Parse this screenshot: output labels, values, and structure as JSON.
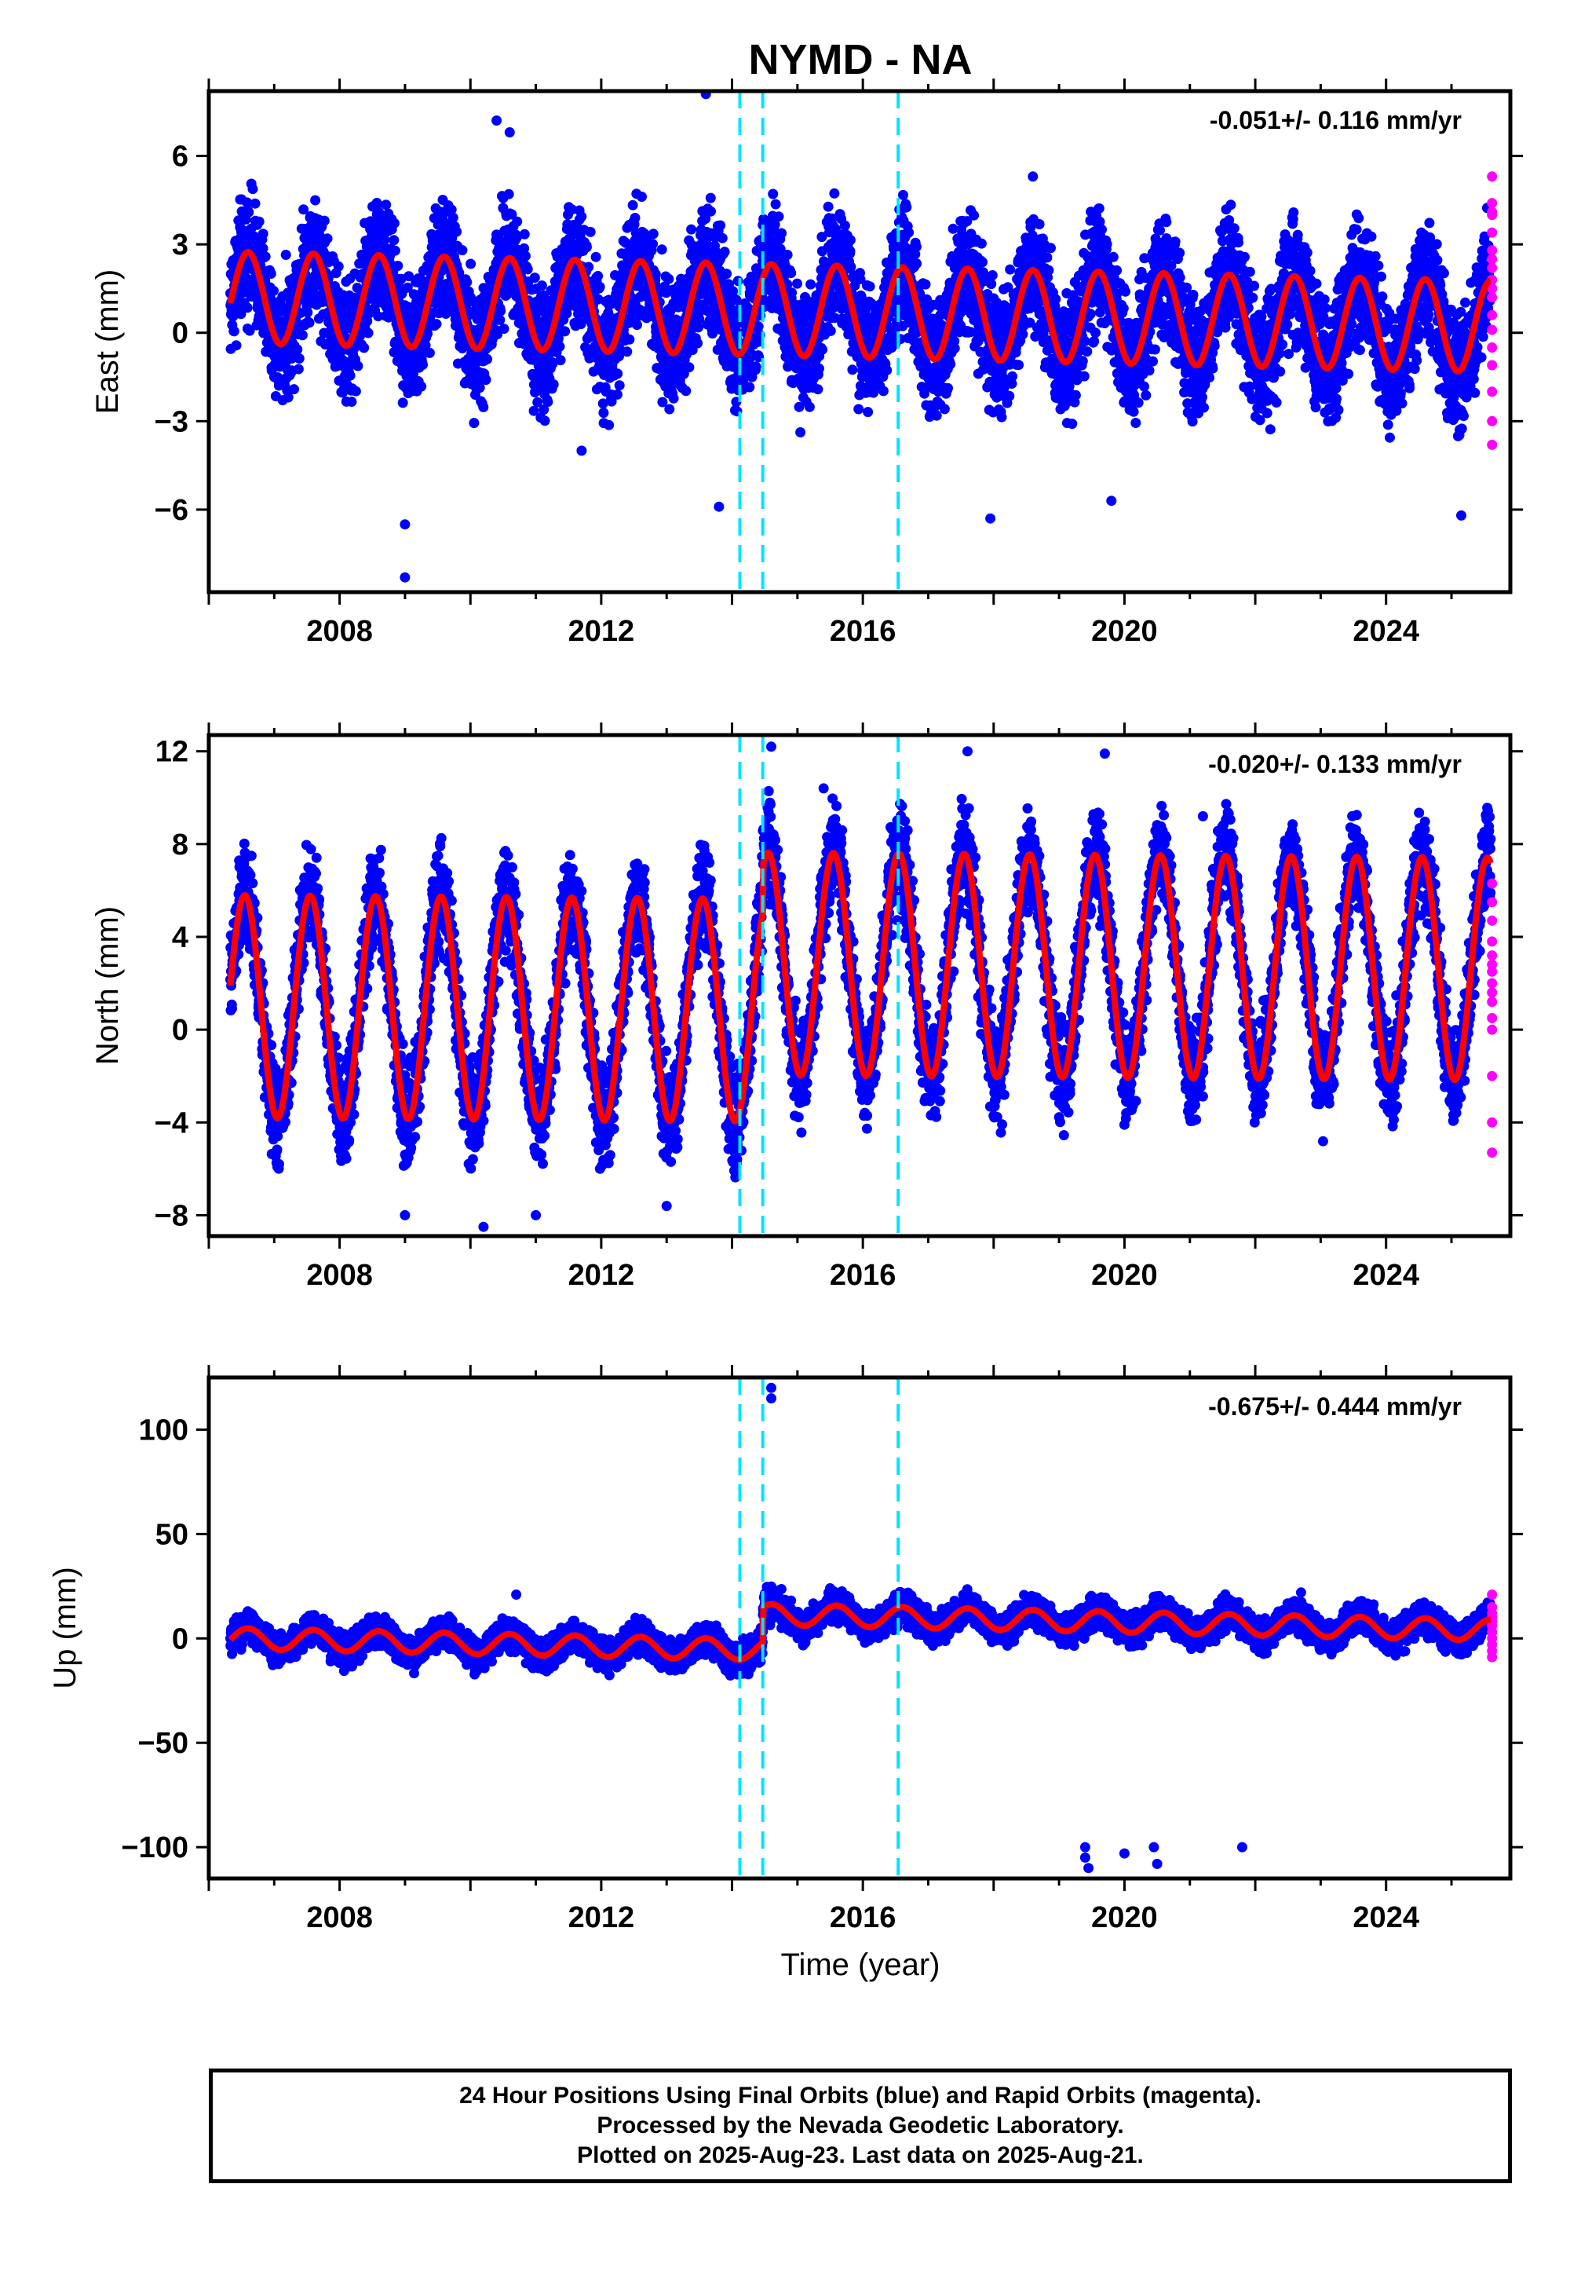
{
  "title": "NYMD - NA",
  "xlabel": "Time (year)",
  "chart_data": [
    {
      "type": "scatter",
      "panel": "east",
      "ylabel": "East (mm)",
      "rate": "-0.051+/- 0.116 mm/yr",
      "xlim": [
        2006.0,
        2025.9
      ],
      "ylim": [
        -8.8,
        8.2
      ],
      "yticks": [
        -6,
        -3,
        0,
        3,
        6
      ],
      "xticks": [
        2008,
        2012,
        2016,
        2020,
        2024
      ],
      "offsets": [
        2014.12,
        2014.47,
        2016.54
      ],
      "trend": {
        "t0": 2006.33,
        "c0": 1.2,
        "slope": -0.051,
        "amp": 1.55,
        "phase_peak": 0.6
      },
      "noise": 1.15,
      "outliers": [
        [
          2009.0,
          -8.3
        ],
        [
          2009.0,
          -6.5
        ],
        [
          2013.8,
          -5.9
        ],
        [
          2010.4,
          7.2
        ],
        [
          2010.6,
          6.8
        ],
        [
          2013.6,
          8.1
        ],
        [
          2025.15,
          -6.2
        ],
        [
          2017.95,
          -6.3
        ],
        [
          2019.8,
          -5.7
        ],
        [
          2011.7,
          -4.0
        ],
        [
          2018.6,
          5.3
        ]
      ],
      "rapid": {
        "t": 2025.62,
        "values": [
          5.3,
          4.4,
          4.1,
          3.4,
          2.8,
          2.2,
          1.8,
          1.2,
          0.6,
          0.1,
          -0.5,
          -1.1,
          -2.0,
          -3.0,
          -3.8,
          2.5,
          1.5,
          4.0
        ]
      },
      "series": [
        {
          "name": "Final Orbits",
          "color": "#0000ff"
        },
        {
          "name": "Rapid Orbits",
          "color": "#ff00ff"
        },
        {
          "name": "Model",
          "color": "#ff0000"
        }
      ]
    },
    {
      "type": "scatter",
      "panel": "north",
      "ylabel": "North (mm)",
      "rate": "-0.020+/- 0.133 mm/yr",
      "xlim": [
        2006.0,
        2025.9
      ],
      "ylim": [
        -8.9,
        12.7
      ],
      "yticks": [
        -8,
        -4,
        0,
        4,
        8,
        12
      ],
      "xticks": [
        2008,
        2012,
        2016,
        2020,
        2024
      ],
      "offsets": [
        2014.12,
        2014.47,
        2016.54
      ],
      "trend": {
        "t0": 2006.33,
        "c0": 1.0,
        "slope": -0.02,
        "amp": 4.8,
        "phase_peak": 0.55,
        "jump_t": 2014.47,
        "jump": 2.0
      },
      "noise": 1.2,
      "outliers": [
        [
          2014.6,
          12.2
        ],
        [
          2017.6,
          12.0
        ],
        [
          2021.2,
          9.2
        ],
        [
          2009.0,
          -8.0
        ],
        [
          2010.2,
          -8.5
        ],
        [
          2011.0,
          -8.0
        ],
        [
          2013.0,
          -7.6
        ],
        [
          2015.4,
          10.4
        ],
        [
          2019.7,
          11.9
        ]
      ],
      "rapid": {
        "t": 2025.62,
        "values": [
          6.3,
          5.5,
          4.7,
          3.8,
          3.2,
          2.5,
          2.0,
          1.2,
          0.5,
          0.0,
          -2.0,
          -4.0,
          -5.3,
          1.6,
          2.8
        ]
      },
      "series": [
        {
          "name": "Final Orbits",
          "color": "#0000ff"
        },
        {
          "name": "Rapid Orbits",
          "color": "#ff00ff"
        },
        {
          "name": "Model",
          "color": "#ff0000"
        }
      ]
    },
    {
      "type": "scatter",
      "panel": "up",
      "ylabel": "Up (mm)",
      "rate": "-0.675+/- 0.444 mm/yr",
      "xlim": [
        2006.0,
        2025.9
      ],
      "ylim": [
        -115,
        125
      ],
      "yticks": [
        -100,
        -50,
        0,
        50,
        100
      ],
      "xticks": [
        2008,
        2012,
        2016,
        2020,
        2024
      ],
      "offsets": [
        2014.12,
        2014.47,
        2016.54
      ],
      "trend": {
        "t0": 2006.33,
        "c0": 0.0,
        "slope": -0.675,
        "amp": 5.0,
        "phase_peak": 0.6,
        "jump_t": 2014.47,
        "jump": 17.0
      },
      "noise": 4.2,
      "outliers": [
        [
          2014.6,
          120.0
        ],
        [
          2014.6,
          115.0
        ],
        [
          2019.4,
          -100.0
        ],
        [
          2019.4,
          -105.0
        ],
        [
          2019.45,
          -110.0
        ],
        [
          2020.0,
          -103.0
        ],
        [
          2020.45,
          -100.0
        ],
        [
          2020.5,
          -108.0
        ],
        [
          2021.8,
          -100.0
        ],
        [
          2010.7,
          21.0
        ],
        [
          2015.5,
          24.0
        ],
        [
          2022.7,
          22.0
        ]
      ],
      "rapid": {
        "t": 2025.62,
        "values": [
          21.0,
          15.0,
          10.0,
          6.0,
          3.0,
          0.0,
          -3.0,
          -6.0,
          -9.0,
          12.0,
          8.0
        ]
      },
      "series": [
        {
          "name": "Final Orbits",
          "color": "#0000ff"
        },
        {
          "name": "Rapid Orbits",
          "color": "#ff00ff"
        },
        {
          "name": "Model",
          "color": "#ff0000"
        }
      ]
    }
  ],
  "caption": [
    "24 Hour Positions Using Final Orbits (blue) and Rapid Orbits (magenta).",
    "Processed by the Nevada Geodetic Laboratory.",
    "Plotted on 2025-Aug-23. Last data on 2025-Aug-21."
  ]
}
